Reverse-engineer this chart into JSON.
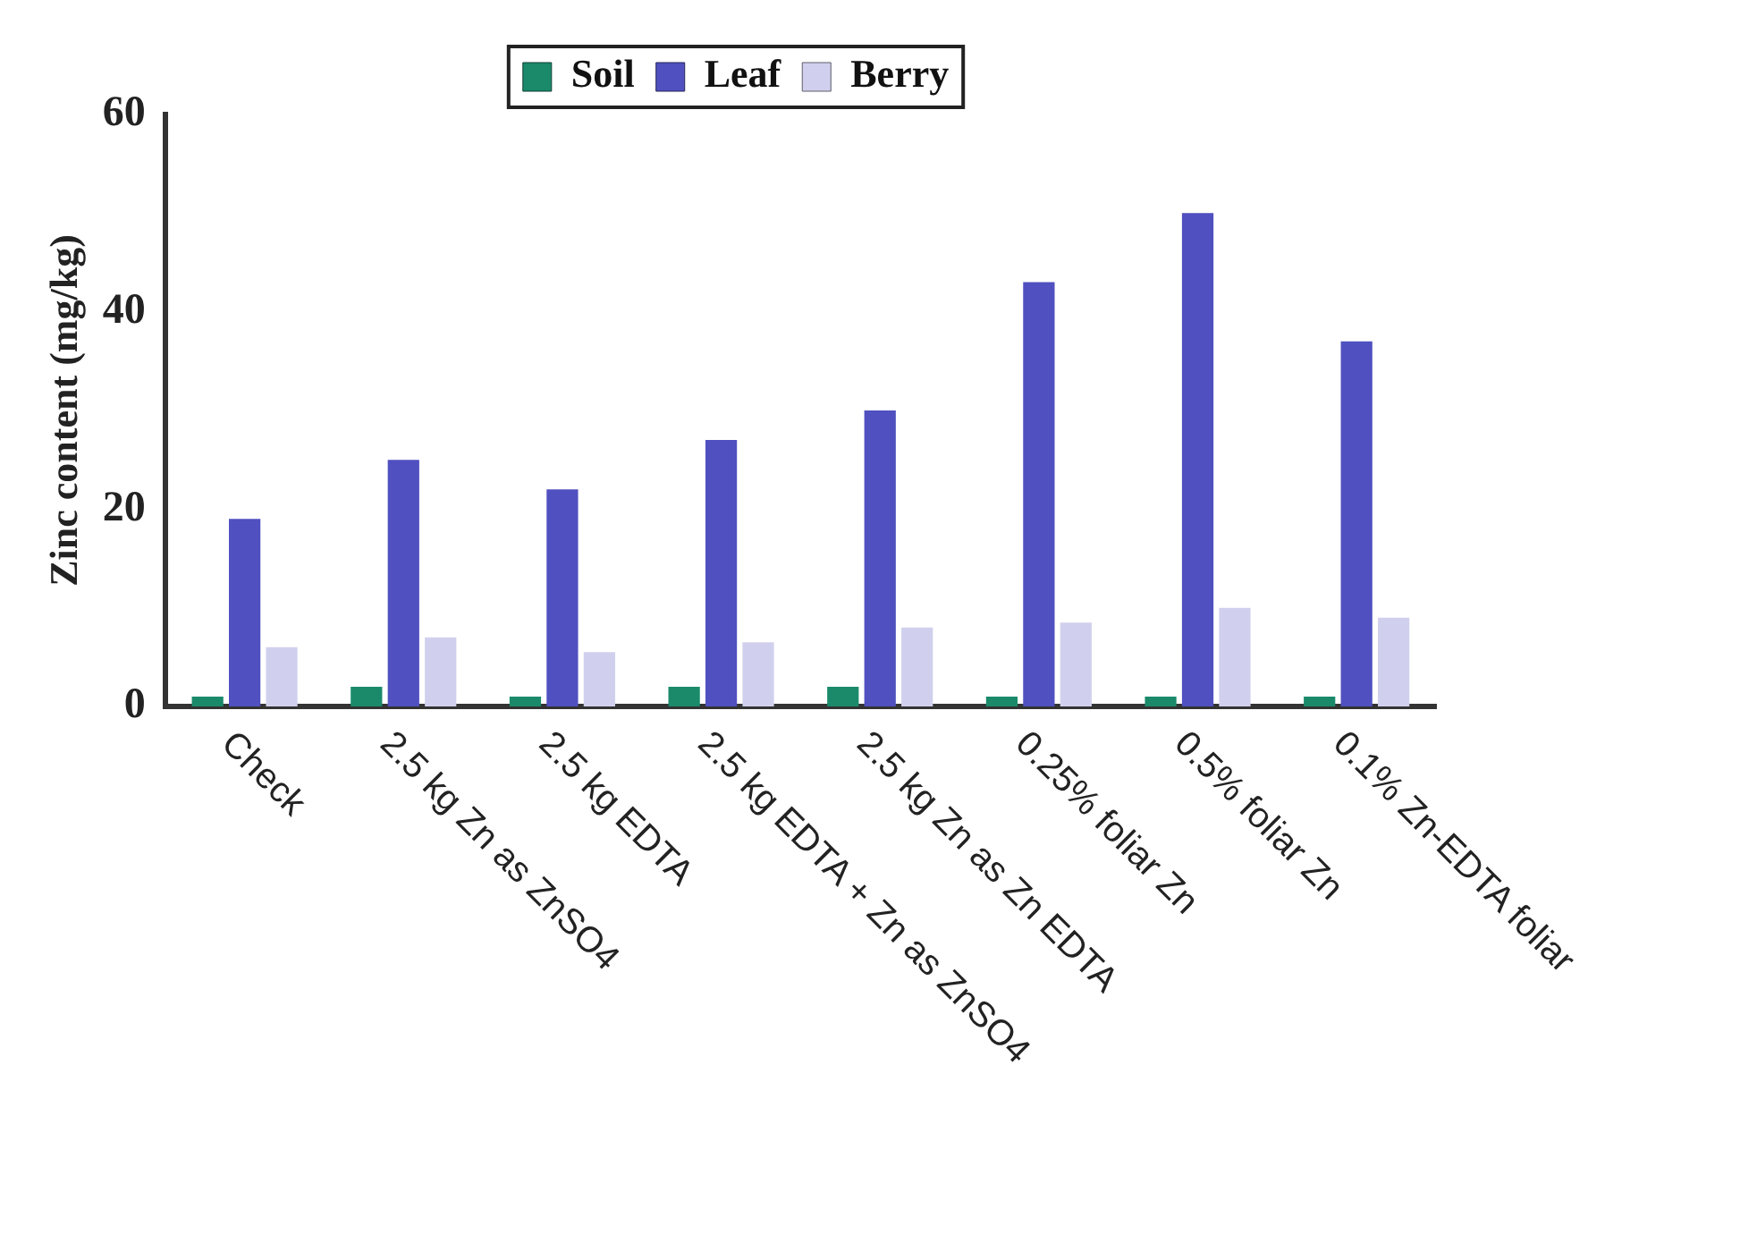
{
  "chart_data": {
    "type": "bar",
    "ylabel": "Zinc content (mg/kg)",
    "categories": [
      "Check",
      "2.5 kg Zn as ZnSO4",
      "2.5 kg EDTA",
      "2.5 kg EDTA + Zn as ZnSO4",
      "2.5 kg Zn as Zn EDTA",
      "0.25% foliar Zn",
      "0.5% foliar Zn",
      "0.1% Zn-EDTA foliar"
    ],
    "series": [
      {
        "name": "Soil",
        "color": "#1a8a6a",
        "values": [
          1,
          2,
          1,
          2,
          2,
          1,
          1,
          1
        ]
      },
      {
        "name": "Leaf",
        "color": "#5050c0",
        "values": [
          19,
          25,
          22,
          27,
          30,
          43,
          50,
          37
        ]
      },
      {
        "name": "Berry",
        "color": "#d0d0ee",
        "values": [
          6,
          7,
          5.5,
          6.5,
          8,
          8.5,
          10,
          9
        ]
      }
    ],
    "ylim": [
      0,
      60
    ],
    "yticks": [
      0,
      20,
      40,
      60
    ],
    "grid": false,
    "legend": "top"
  }
}
